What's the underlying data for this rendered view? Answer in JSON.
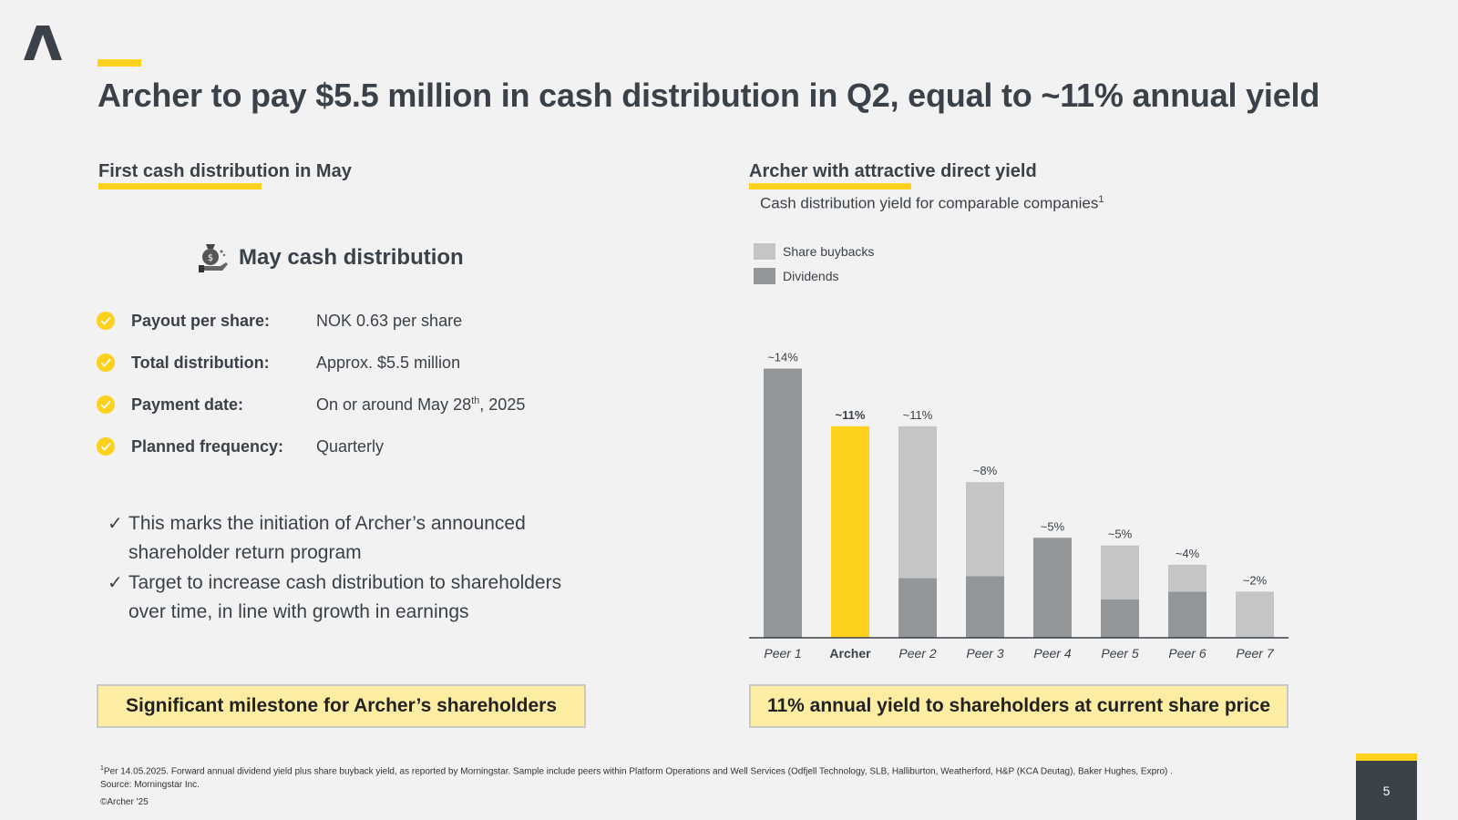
{
  "title": "Archer to pay $5.5 million in cash distribution in Q2, equal to ~11% annual yield",
  "left": {
    "section_title": "First cash distribution in May",
    "card_heading": "May cash distribution",
    "details": [
      {
        "label": "Payout per share:",
        "value": "NOK 0.63 per share"
      },
      {
        "label": "Total distribution:",
        "value": "Approx. $5.5 million"
      },
      {
        "label": "Payment date:",
        "value_before": "On or around May 28",
        "value_sup": "th",
        "value_after": ", 2025"
      },
      {
        "label": "Planned frequency:",
        "value": "Quarterly"
      }
    ],
    "bullets": [
      "This marks the initiation of Archer’s announced shareholder return program",
      "Target to increase cash distribution to shareholders over time, in line with growth in earnings"
    ],
    "callout": "Significant milestone for Archer’s shareholders"
  },
  "right": {
    "section_title": "Archer with attractive direct yield",
    "subtitle": "Cash distribution yield for comparable companies",
    "subtitle_sup": "1",
    "callout": "11% annual yield to shareholders at current share price"
  },
  "colors": {
    "accent": "#fdd11c",
    "text": "#3a4149",
    "dividends": "#939699",
    "buybacks": "#c3c5c7",
    "archer": "#fdd11c",
    "callout_bg": "#fdeda2"
  },
  "chart_data": {
    "type": "bar",
    "stacked": true,
    "title": "Cash distribution yield for comparable companies",
    "categories": [
      "Peer 1",
      "Archer",
      "Peer 2",
      "Peer 3",
      "Peer 4",
      "Peer 5",
      "Peer 6",
      "Peer 7"
    ],
    "highlight": "Archer",
    "series": [
      {
        "name": "Dividends",
        "values": [
          14.0,
          11.0,
          3.1,
          3.2,
          5.2,
          2.0,
          2.4,
          0
        ]
      },
      {
        "name": "Share buybacks",
        "values": [
          0,
          0,
          7.9,
          4.9,
          0,
          2.8,
          1.4,
          2.4
        ]
      }
    ],
    "legend": [
      "Share buybacks",
      "Dividends"
    ],
    "data_labels": [
      "~14%",
      "~11%",
      "~11%",
      "~8%",
      "~5%",
      "~5%",
      "~4%",
      "~2%"
    ],
    "ylim": [
      0,
      14.5
    ],
    "grid": false,
    "legend_position": "top-left"
  },
  "footnote": {
    "sup": "1",
    "line1": "Per 14.05.2025. Forward annual dividend yield plus share buyback yield, as reported by Morningstar. Sample include peers within Platform Operations and Well Services (Odfjell Technology, SLB, Halliburton, Weatherford, H&P (KCA Deutag), Baker Hughes, Expro) .",
    "line2": "Source: Morningstar Inc."
  },
  "copyright": "©Archer '25",
  "page_number": "5",
  "icons": {
    "logo": "archer-logo",
    "card": "money-bag-hand-icon",
    "check": "check-circle-icon"
  }
}
